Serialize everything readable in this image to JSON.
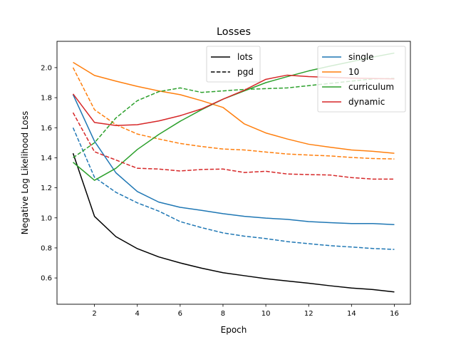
{
  "chart_data": {
    "type": "line",
    "title": "Losses",
    "xlabel": "Epoch",
    "ylabel": "Negative Log Likelihood Loss",
    "xlim": [
      0.25,
      16.75
    ],
    "ylim": [
      0.425,
      2.175
    ],
    "xticks": [
      2,
      4,
      6,
      8,
      10,
      12,
      14,
      16
    ],
    "yticks": [
      0.6,
      0.8,
      1.0,
      1.2,
      1.4,
      1.6,
      1.8,
      2.0
    ],
    "ytick_labels": [
      "0.6",
      "0.8",
      "1.0",
      "1.2",
      "1.4",
      "1.6",
      "1.8",
      "2.0"
    ],
    "grid": false,
    "x": [
      1,
      2,
      3,
      4,
      5,
      6,
      7,
      8,
      9,
      10,
      11,
      12,
      13,
      14,
      15,
      16
    ],
    "series": [
      {
        "name": "lots",
        "group": "lots",
        "color": "#000000",
        "style": "solid",
        "values": [
          1.43,
          1.01,
          0.875,
          0.795,
          0.74,
          0.7,
          0.665,
          0.635,
          0.615,
          0.595,
          0.58,
          0.565,
          0.548,
          0.533,
          0.523,
          0.507
        ]
      },
      {
        "group": "single",
        "color": "#1f77b4",
        "style": "solid",
        "values": [
          1.82,
          1.51,
          1.3,
          1.175,
          1.105,
          1.07,
          1.05,
          1.028,
          1.01,
          0.998,
          0.99,
          0.975,
          0.968,
          0.962,
          0.962,
          0.955
        ]
      },
      {
        "group": "single",
        "color": "#1f77b4",
        "style": "dashed",
        "values": [
          1.6,
          1.27,
          1.17,
          1.1,
          1.045,
          0.975,
          0.935,
          0.9,
          0.878,
          0.862,
          0.842,
          0.828,
          0.815,
          0.806,
          0.796,
          0.79
        ]
      },
      {
        "group": "10",
        "color": "#ff7f0e",
        "style": "solid",
        "values": [
          2.035,
          1.948,
          1.91,
          1.875,
          1.845,
          1.82,
          1.78,
          1.735,
          1.625,
          1.565,
          1.525,
          1.49,
          1.47,
          1.452,
          1.443,
          1.43
        ]
      },
      {
        "group": "10",
        "color": "#ff7f0e",
        "style": "dashed",
        "values": [
          2.0,
          1.72,
          1.62,
          1.558,
          1.525,
          1.495,
          1.475,
          1.458,
          1.452,
          1.438,
          1.425,
          1.418,
          1.412,
          1.402,
          1.395,
          1.392
        ]
      },
      {
        "group": "curriculum",
        "color": "#2ca02c",
        "style": "solid",
        "values": [
          1.37,
          1.25,
          1.33,
          1.455,
          1.555,
          1.643,
          1.72,
          1.79,
          1.845,
          1.9,
          1.94,
          1.978,
          2.01,
          2.04,
          2.07,
          2.097
        ]
      },
      {
        "group": "curriculum",
        "color": "#2ca02c",
        "style": "dashed",
        "values": [
          1.4,
          1.5,
          1.665,
          1.78,
          1.84,
          1.865,
          1.835,
          1.845,
          1.855,
          1.86,
          1.865,
          1.88,
          1.895,
          1.91,
          1.925,
          1.928
        ]
      },
      {
        "group": "dynamic",
        "color": "#d62728",
        "style": "solid",
        "values": [
          1.825,
          1.635,
          1.615,
          1.62,
          1.645,
          1.68,
          1.725,
          1.79,
          1.85,
          1.922,
          1.95,
          1.94,
          1.935,
          1.93,
          1.928,
          1.925
        ]
      },
      {
        "group": "dynamic",
        "color": "#d62728",
        "style": "dashed",
        "values": [
          1.7,
          1.44,
          1.385,
          1.33,
          1.325,
          1.312,
          1.322,
          1.325,
          1.302,
          1.31,
          1.292,
          1.288,
          1.285,
          1.268,
          1.258,
          1.258
        ]
      }
    ],
    "legends": [
      {
        "placement": "upper-center",
        "entries": [
          {
            "label": "lots",
            "color": "#000000",
            "style": "solid"
          },
          {
            "label": "pgd",
            "color": "#000000",
            "style": "dashed"
          }
        ]
      },
      {
        "placement": "upper-right",
        "entries": [
          {
            "label": "single",
            "color": "#1f77b4",
            "style": "solid"
          },
          {
            "label": "10",
            "color": "#ff7f0e",
            "style": "solid"
          },
          {
            "label": "curriculum",
            "color": "#2ca02c",
            "style": "solid"
          },
          {
            "label": "dynamic",
            "color": "#d62728",
            "style": "solid"
          }
        ]
      }
    ]
  }
}
